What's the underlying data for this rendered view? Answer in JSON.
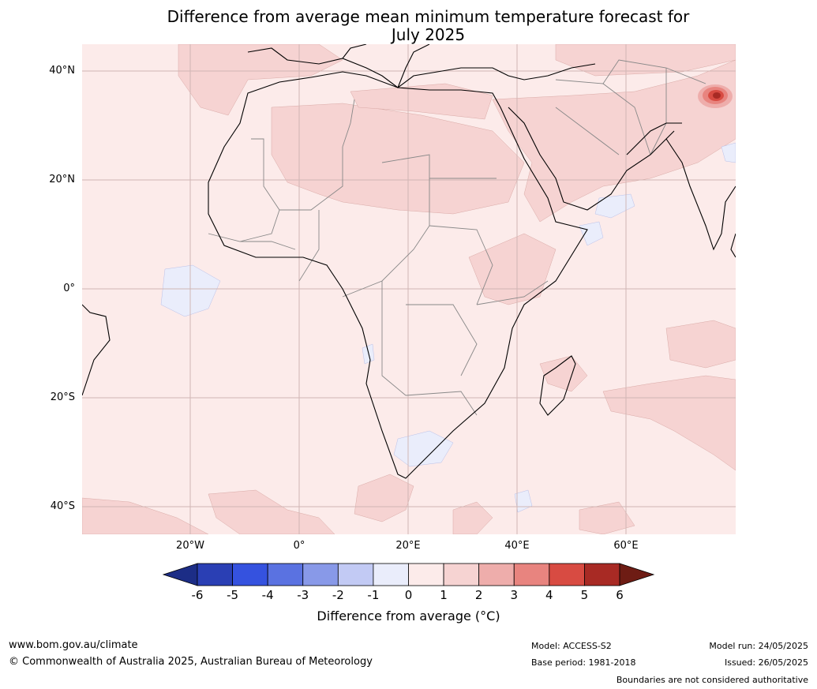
{
  "title": {
    "line1": "Difference from average mean minimum temperature forecast for",
    "line2": "July 2025"
  },
  "lat_labels": [
    "40°N",
    "20°N",
    "0°",
    "20°S",
    "40°S"
  ],
  "lon_labels": [
    "20°W",
    "0°",
    "20°E",
    "40°E",
    "60°E"
  ],
  "colorbar": {
    "ticks": [
      "-6",
      "-5",
      "-4",
      "-3",
      "-2",
      "-1",
      "0",
      "1",
      "2",
      "3",
      "4",
      "5",
      "6"
    ],
    "colors": [
      "#1c2d86",
      "#2a3fb4",
      "#3552df",
      "#5a72e1",
      "#8899e8",
      "#c2caf4",
      "#eaedfb",
      "#fcebea",
      "#f6d3d2",
      "#eeadab",
      "#e8847f",
      "#d84b42",
      "#a82a24",
      "#6e1c14"
    ],
    "label": "Difference from average (°C)"
  },
  "footer": {
    "website": "www.bom.gov.au/climate",
    "copyright": "© Commonwealth of Australia 2025, Australian Bureau of Meteorology",
    "model": "Model: ACCESS-S2",
    "base_period": "Base period: 1981-2018",
    "model_run": "Model run: 24/05/2025",
    "issued": "Issued: 26/05/2025",
    "disclaimer": "Boundaries are not considered authoritative"
  }
}
